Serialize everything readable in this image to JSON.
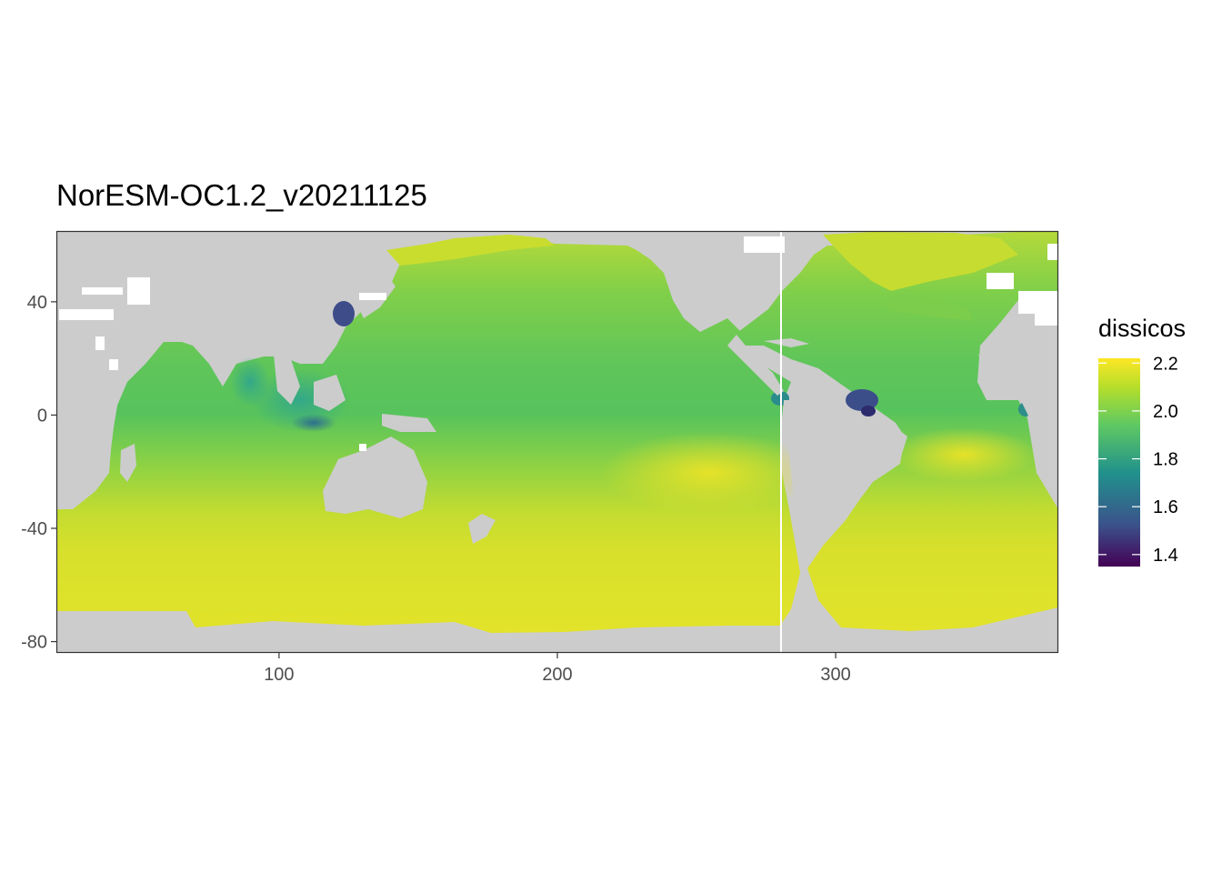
{
  "chart_data": {
    "type": "heatmap",
    "title": "NorESM-OC1.2_v20211125",
    "xlabel": "",
    "ylabel": "",
    "x_ticks": [
      100,
      200,
      300
    ],
    "y_ticks": [
      40,
      0,
      -40,
      -80
    ],
    "xlim": [
      20,
      380
    ],
    "ylim": [
      -84,
      65
    ],
    "grid": false,
    "legend": {
      "title": "dissicos",
      "placement": "right",
      "ticks": [
        "2.2",
        "2.0",
        "1.8",
        "1.6",
        "1.4"
      ],
      "tick_values": [
        2.2,
        2.0,
        1.8,
        1.6,
        1.4
      ],
      "range": [
        1.35,
        2.22
      ],
      "colors": [
        "#440154",
        "#3b528b",
        "#21918c",
        "#5ec962",
        "#b5de2b",
        "#fde725"
      ]
    },
    "colors": {
      "land": "#cccccc",
      "missing": "#ffffff"
    },
    "value_regions": [
      {
        "region": "Southern Ocean",
        "approx_value": 2.19
      },
      {
        "region": "Subtropical South Pacific / Atlantic",
        "approx_value": 2.12
      },
      {
        "region": "Equatorial Pacific",
        "approx_value": 2.02
      },
      {
        "region": "North Pacific",
        "approx_value": 2.05
      },
      {
        "region": "North Atlantic",
        "approx_value": 2.08
      },
      {
        "region": "Indian Ocean",
        "approx_value": 2.0
      },
      {
        "region": "Maritime Continent / Indonesian seas",
        "approx_value": 1.85
      },
      {
        "region": "Amazon / Orinoco outflow",
        "approx_value": 1.5
      },
      {
        "region": "East China Sea coast",
        "approx_value": 1.55
      }
    ]
  }
}
